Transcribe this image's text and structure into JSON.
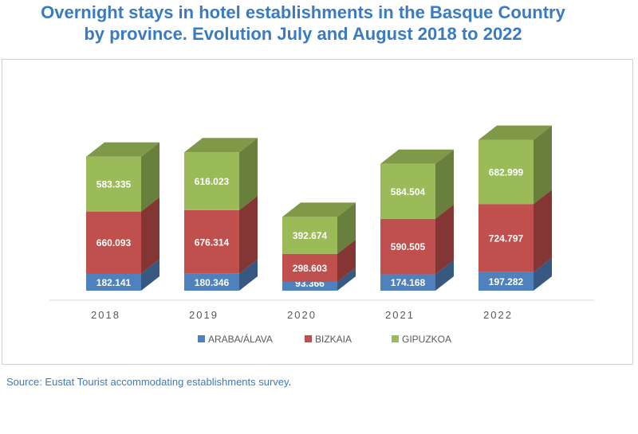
{
  "chart_data": {
    "type": "bar",
    "stacked": true,
    "title_line1": "Overnight stays in hotel establishments in the Basque Country",
    "title_line2": "by province. Evolution July and August 2018 to 2022",
    "categories": [
      "2018",
      "2019",
      "2020",
      "2021",
      "2022"
    ],
    "series": [
      {
        "name": "ARABA/ÁLAVA",
        "color": "#4f81bd",
        "values": [
          182141,
          180346,
          93366,
          174168,
          197282
        ],
        "labels": [
          "182.141",
          "180.346",
          "93.366",
          "174.168",
          "197.282"
        ]
      },
      {
        "name": "BIZKAIA",
        "color": "#c0504d",
        "values": [
          660093,
          676314,
          298603,
          590505,
          724797
        ],
        "labels": [
          "660.093",
          "676.314",
          "298.603",
          "590.505",
          "724.797"
        ]
      },
      {
        "name": "GIPUZKOA",
        "color": "#9bbb59",
        "values": [
          583335,
          616023,
          392674,
          584504,
          682999
        ],
        "labels": [
          "583.335",
          "616.023",
          "392.674",
          "584.504",
          "682.999"
        ]
      }
    ],
    "legend_position": "bottom",
    "grid": false
  },
  "source": {
    "text": "Source: Eustat Tourist accommodating establishments survey",
    "period": "."
  }
}
